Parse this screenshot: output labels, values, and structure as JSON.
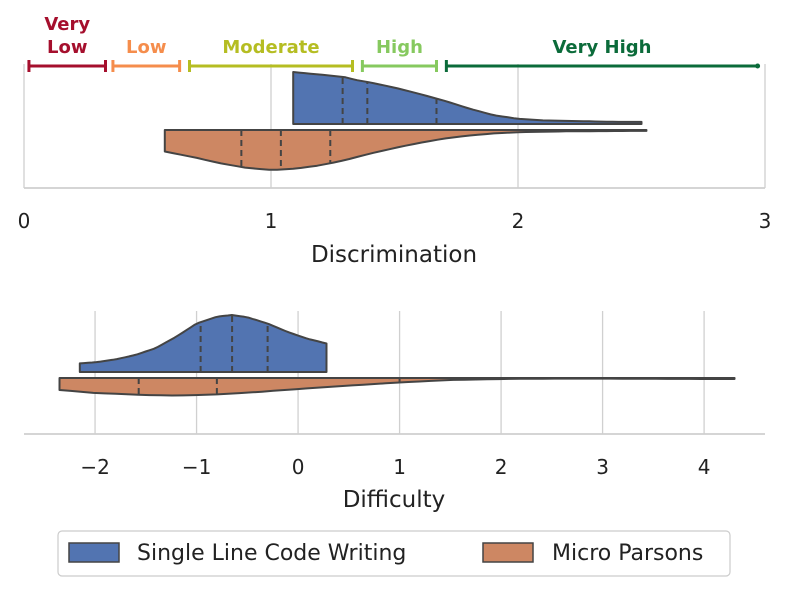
{
  "chart_data": [
    {
      "type": "split-violin",
      "xlabel": "Discrimination",
      "xlim": [
        0,
        3
      ],
      "ticks": [
        "0",
        "1",
        "2",
        "3"
      ],
      "grid": true,
      "categories": [
        {
          "label": "Very\nLow",
          "label_lines": [
            "Very",
            "Low"
          ],
          "range": [
            0.02,
            0.33
          ],
          "color": "#a50f2d"
        },
        {
          "label": "Low",
          "range": [
            0.36,
            0.63
          ],
          "color": "#f58d4c"
        },
        {
          "label": "Moderate",
          "range": [
            0.67,
            1.33
          ],
          "color": "#b5bd22"
        },
        {
          "label": "High",
          "range": [
            1.37,
            1.67
          ],
          "color": "#86c95f"
        },
        {
          "label": "Very High",
          "range": [
            1.71,
            2.97
          ],
          "color": "#0b6b3a"
        }
      ],
      "series": [
        {
          "name": "Single Line Code Writing",
          "side": "upper",
          "color": "#5274b1",
          "x_min": 1.09,
          "x_max": 2.5,
          "quartiles": [
            1.29,
            1.39,
            1.67
          ],
          "density": [
            [
              1.09,
              1.0
            ],
            [
              1.2,
              0.95
            ],
            [
              1.3,
              0.9
            ],
            [
              1.35,
              0.84
            ],
            [
              1.4,
              0.8
            ],
            [
              1.5,
              0.7
            ],
            [
              1.6,
              0.58
            ],
            [
              1.7,
              0.45
            ],
            [
              1.8,
              0.3
            ],
            [
              1.9,
              0.17
            ],
            [
              2.0,
              0.1
            ],
            [
              2.1,
              0.07
            ],
            [
              2.2,
              0.06
            ],
            [
              2.3,
              0.05
            ],
            [
              2.4,
              0.04
            ],
            [
              2.5,
              0.04
            ]
          ]
        },
        {
          "name": "Micro Parsons",
          "side": "lower",
          "color": "#cd8763",
          "x_min": 0.57,
          "x_max": 2.52,
          "quartiles": [
            0.88,
            1.04,
            1.24
          ],
          "density": [
            [
              0.57,
              0.5
            ],
            [
              0.7,
              0.65
            ],
            [
              0.8,
              0.78
            ],
            [
              0.9,
              0.88
            ],
            [
              1.0,
              0.93
            ],
            [
              1.1,
              0.9
            ],
            [
              1.2,
              0.82
            ],
            [
              1.3,
              0.7
            ],
            [
              1.4,
              0.55
            ],
            [
              1.5,
              0.42
            ],
            [
              1.6,
              0.3
            ],
            [
              1.7,
              0.2
            ],
            [
              1.8,
              0.13
            ],
            [
              1.9,
              0.08
            ],
            [
              2.0,
              0.05
            ],
            [
              2.2,
              0.03
            ],
            [
              2.52,
              0.02
            ]
          ]
        }
      ]
    },
    {
      "type": "split-violin",
      "xlabel": "Difficulty",
      "xlim": [
        -2.7,
        4.6
      ],
      "ticks": [
        "−2",
        "−1",
        "0",
        "1",
        "2",
        "3",
        "4"
      ],
      "tick_values": [
        -2,
        -1,
        0,
        1,
        2,
        3,
        4
      ],
      "grid": true,
      "series": [
        {
          "name": "Single Line Code Writing",
          "side": "upper",
          "color": "#5274b1",
          "x_min": -2.15,
          "x_max": 0.28,
          "quartiles": [
            -0.96,
            -0.65,
            -0.3
          ],
          "density": [
            [
              -2.15,
              0.15
            ],
            [
              -2.0,
              0.17
            ],
            [
              -1.8,
              0.22
            ],
            [
              -1.6,
              0.3
            ],
            [
              -1.4,
              0.42
            ],
            [
              -1.2,
              0.62
            ],
            [
              -1.0,
              0.85
            ],
            [
              -0.8,
              0.97
            ],
            [
              -0.65,
              1.0
            ],
            [
              -0.5,
              0.96
            ],
            [
              -0.3,
              0.85
            ],
            [
              -0.1,
              0.7
            ],
            [
              0.1,
              0.58
            ],
            [
              0.28,
              0.5
            ]
          ]
        },
        {
          "name": "Micro Parsons",
          "side": "lower",
          "color": "#cd8763",
          "x_min": -2.35,
          "x_max": 4.3,
          "quartiles": [
            -1.57,
            -0.8,
            1.0
          ],
          "density": [
            [
              -2.35,
              0.6
            ],
            [
              -2.0,
              0.75
            ],
            [
              -1.5,
              0.85
            ],
            [
              -1.2,
              0.88
            ],
            [
              -0.8,
              0.82
            ],
            [
              -0.4,
              0.7
            ],
            [
              0.0,
              0.55
            ],
            [
              0.5,
              0.38
            ],
            [
              1.0,
              0.22
            ],
            [
              1.5,
              0.1
            ],
            [
              2.0,
              0.05
            ],
            [
              2.5,
              0.03
            ],
            [
              3.0,
              0.03
            ],
            [
              3.5,
              0.04
            ],
            [
              4.0,
              0.05
            ],
            [
              4.3,
              0.05
            ]
          ]
        }
      ]
    }
  ],
  "legend": {
    "placement": "bottom",
    "items": [
      {
        "label": "Single Line Code Writing",
        "color": "#5274b1"
      },
      {
        "label": "Micro Parsons",
        "color": "#cd8763"
      }
    ]
  }
}
